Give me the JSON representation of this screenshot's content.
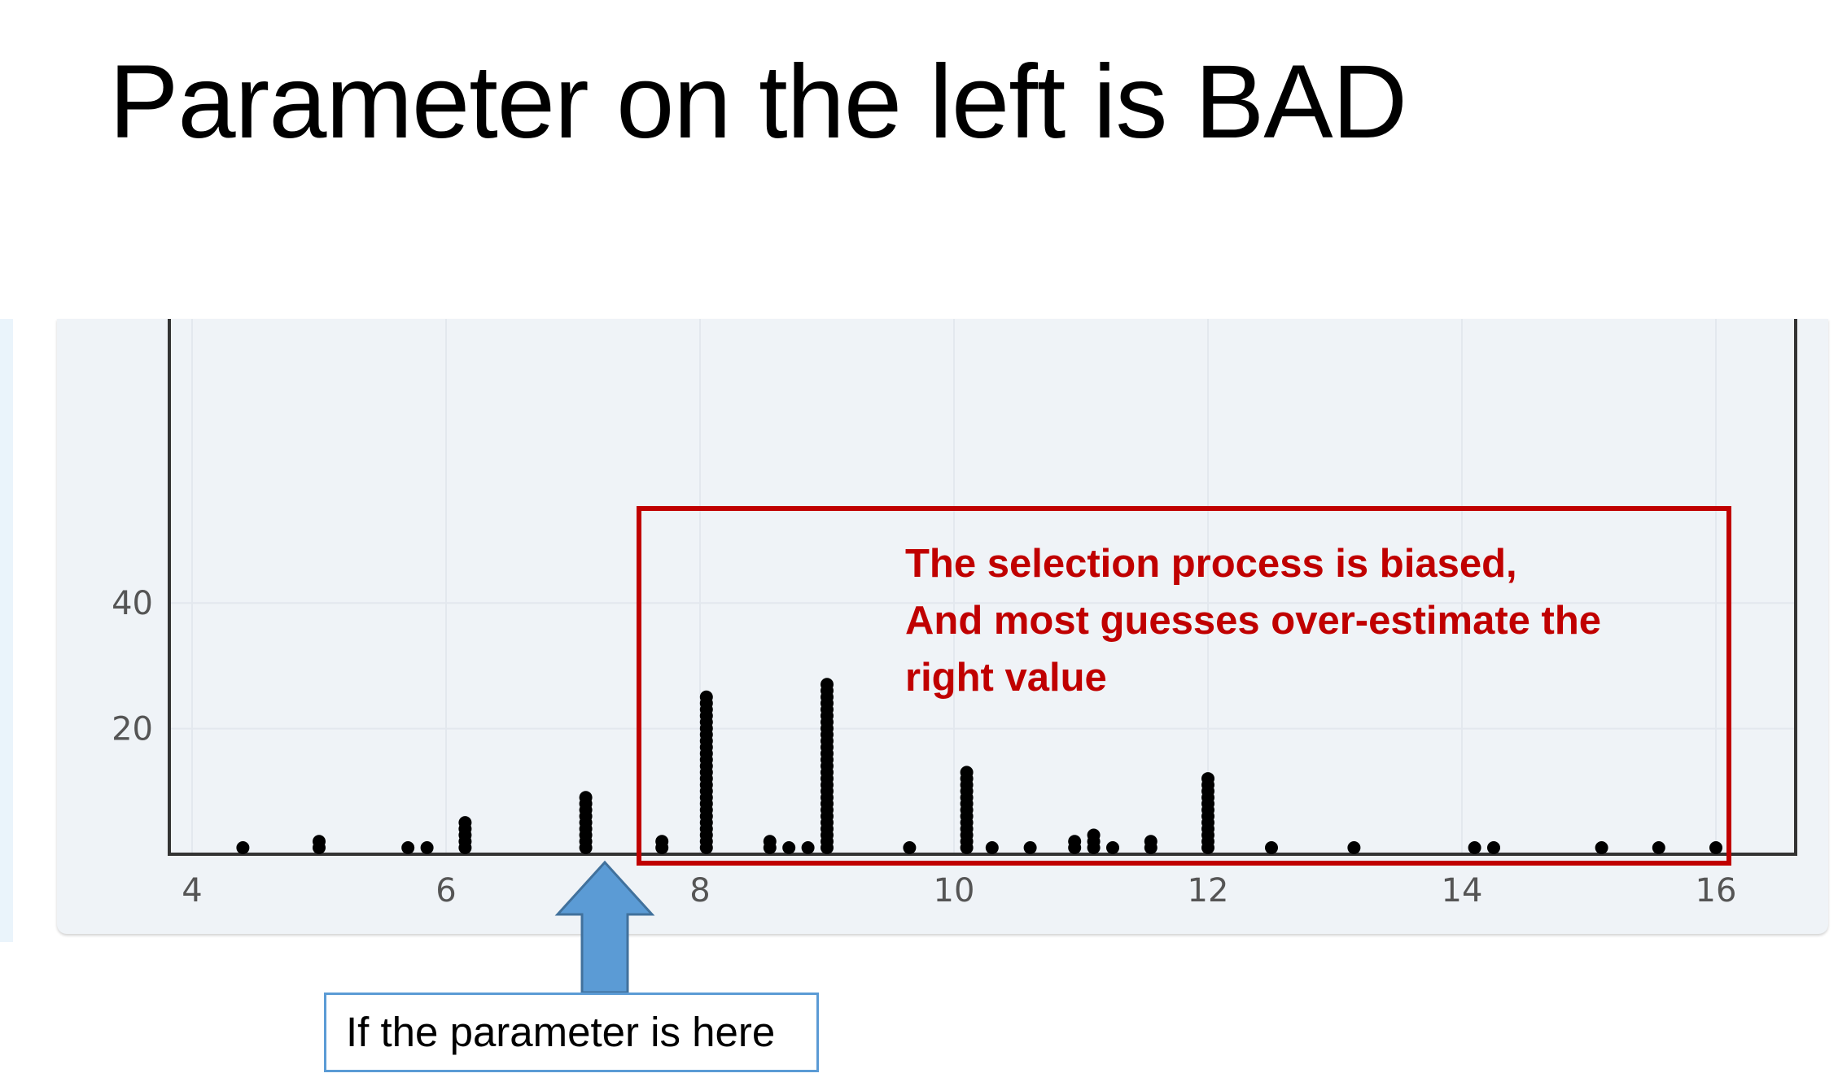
{
  "slide": {
    "title": "Parameter on the left is BAD"
  },
  "annotations": {
    "callout_lines": [
      "The selection process is biased,",
      "And most guesses over-estimate the",
      "right value"
    ],
    "parameter_label": "If the parameter is here",
    "callout_color": "#c00000",
    "arrow_color": "#5b9bd5",
    "parameter_x": 7.25
  },
  "chart_data": {
    "type": "scatter",
    "style": "dot plot (stacked points)",
    "title": "",
    "xlabel": "",
    "ylabel": "",
    "xlim": [
      3.9,
      16.6
    ],
    "ylim": [
      0,
      58
    ],
    "x_ticks": [
      4,
      6,
      8,
      10,
      12,
      14,
      16
    ],
    "y_ticks": [
      20,
      40
    ],
    "grid": true,
    "highlight_range_x": [
      7.4,
      16.1
    ],
    "marker_color": "#000000",
    "points": [
      {
        "x": 4.4,
        "count": 1
      },
      {
        "x": 5.0,
        "count": 2
      },
      {
        "x": 5.7,
        "count": 1
      },
      {
        "x": 5.85,
        "count": 1
      },
      {
        "x": 6.15,
        "count": 5
      },
      {
        "x": 7.1,
        "count": 9
      },
      {
        "x": 7.7,
        "count": 2
      },
      {
        "x": 8.05,
        "count": 25
      },
      {
        "x": 8.55,
        "count": 2
      },
      {
        "x": 8.7,
        "count": 1
      },
      {
        "x": 8.85,
        "count": 1
      },
      {
        "x": 9.0,
        "count": 27
      },
      {
        "x": 9.65,
        "count": 1
      },
      {
        "x": 10.1,
        "count": 13
      },
      {
        "x": 10.3,
        "count": 1
      },
      {
        "x": 10.6,
        "count": 1
      },
      {
        "x": 10.95,
        "count": 2
      },
      {
        "x": 11.1,
        "count": 3
      },
      {
        "x": 11.25,
        "count": 1
      },
      {
        "x": 11.55,
        "count": 2
      },
      {
        "x": 12.0,
        "count": 12
      },
      {
        "x": 12.5,
        "count": 1
      },
      {
        "x": 13.15,
        "count": 1
      },
      {
        "x": 14.1,
        "count": 1
      },
      {
        "x": 14.25,
        "count": 1
      },
      {
        "x": 15.1,
        "count": 1
      },
      {
        "x": 15.55,
        "count": 1
      },
      {
        "x": 16.0,
        "count": 1
      }
    ]
  }
}
